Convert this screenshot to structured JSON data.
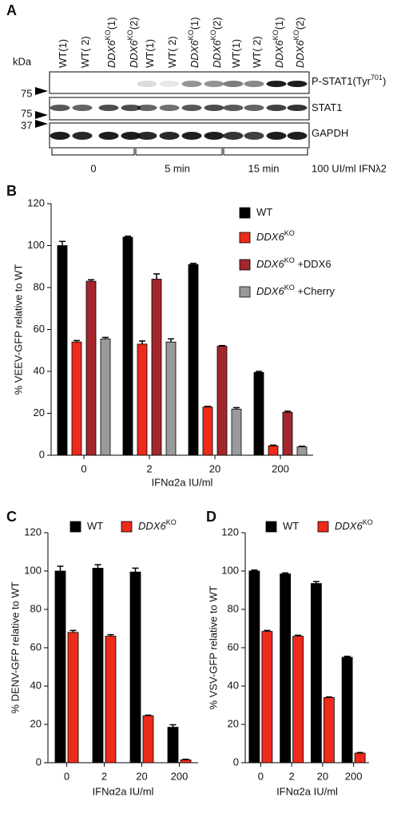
{
  "blot": {
    "panel": "A",
    "unit": "kDa",
    "lanes": [
      [
        {
          "t": "WT(1)"
        }
      ],
      [
        {
          "t": "WT( 2)"
        }
      ],
      [
        {
          "t": "DDX6",
          "i": true
        },
        {
          "t": "KO",
          "sup": true
        },
        {
          "t": "(1)"
        }
      ],
      [
        {
          "t": "DDX6",
          "i": true
        },
        {
          "t": "KO",
          "sup": true
        },
        {
          "t": "(2)"
        }
      ],
      [
        {
          "t": "WT(1)"
        }
      ],
      [
        {
          "t": "WT( 2)"
        }
      ],
      [
        {
          "t": "DDX6",
          "i": true
        },
        {
          "t": "KO",
          "sup": true
        },
        {
          "t": "(1)"
        }
      ],
      [
        {
          "t": "DDX6",
          "i": true
        },
        {
          "t": "KO",
          "sup": true
        },
        {
          "t": "(2)"
        }
      ],
      [
        {
          "t": "WT(1)"
        }
      ],
      [
        {
          "t": "WT( 2)"
        }
      ],
      [
        {
          "t": "DDX6",
          "i": true
        },
        {
          "t": "KO",
          "sup": true
        },
        {
          "t": "(1)"
        }
      ],
      [
        {
          "t": "DDX6",
          "i": true
        },
        {
          "t": "KO",
          "sup": true
        },
        {
          "t": "(2)"
        }
      ]
    ],
    "markers": [
      "75",
      "75",
      "37"
    ],
    "bands": [
      [
        {
          "t": "P-STAT1(Tyr"
        },
        {
          "t": "701",
          "sup": true
        },
        {
          "t": ")"
        }
      ],
      [
        {
          "t": "STAT1"
        }
      ],
      [
        {
          "t": "GAPDH"
        }
      ]
    ],
    "timepoints": [
      "0",
      "5 min",
      "15 min"
    ],
    "treatment": "100 UI/ml IFNλ2"
  },
  "chart_data": [
    {
      "type": "bar",
      "panel": "B",
      "ylabel": "% VEEV-GFP relative to WT",
      "xlabel": "IFNα2a IU/ml",
      "categories": [
        "0",
        "2",
        "20",
        "200"
      ],
      "ylim": [
        0,
        120
      ],
      "yticks": [
        0,
        20,
        40,
        60,
        80,
        100,
        120
      ],
      "legend": "upper right",
      "series": [
        {
          "name": [
            {
              "t": "WT"
            }
          ],
          "color": "#000000",
          "values": [
            100,
            104,
            91,
            39.5
          ],
          "errors": [
            2,
            0.5,
            0.5,
            0.5
          ]
        },
        {
          "name": [
            {
              "t": "DDX6",
              "i": true
            },
            {
              "t": "KO",
              "sup": true
            }
          ],
          "color": "#ee2a1a",
          "values": [
            54,
            53,
            23,
            4.5
          ],
          "errors": [
            0.7,
            1.5,
            0.3,
            0.3
          ]
        },
        {
          "name": [
            {
              "t": "DDX6",
              "i": true
            },
            {
              "t": "KO",
              "sup": true
            },
            {
              "t": " +DDX6"
            }
          ],
          "color": "#a3262c",
          "values": [
            83,
            84,
            52,
            20.5
          ],
          "errors": [
            0.7,
            2.5,
            0.3,
            0.5
          ]
        },
        {
          "name": [
            {
              "t": "DDX6",
              "i": true
            },
            {
              "t": "KO",
              "sup": true
            },
            {
              "t": " +Cherry"
            }
          ],
          "color": "#9a9a9a",
          "values": [
            55.5,
            54,
            22,
            4
          ],
          "errors": [
            0.7,
            1.5,
            0.7,
            0.3
          ]
        }
      ]
    },
    {
      "type": "bar",
      "panel": "C",
      "ylabel": "% DENV-GFP relative to WT",
      "xlabel": "IFNα2a IU/ml",
      "categories": [
        "0",
        "2",
        "20",
        "200"
      ],
      "ylim": [
        0,
        120
      ],
      "yticks": [
        0,
        20,
        40,
        60,
        80,
        100,
        120
      ],
      "legend": "top",
      "series": [
        {
          "name": [
            {
              "t": "WT"
            }
          ],
          "color": "#000000",
          "values": [
            100,
            101.5,
            99.5,
            18.5
          ],
          "errors": [
            2.5,
            1.8,
            2,
            1.3
          ]
        },
        {
          "name": [
            {
              "t": "DDX6",
              "i": true
            },
            {
              "t": "KO",
              "sup": true
            }
          ],
          "color": "#ee2a1a",
          "values": [
            68,
            66,
            24.5,
            1.5
          ],
          "errors": [
            1,
            0.8,
            0.3,
            0.3
          ]
        }
      ]
    },
    {
      "type": "bar",
      "panel": "D",
      "ylabel": "% VSV-GFP relative to WT",
      "xlabel": "IFNα2a IU/ml",
      "categories": [
        "0",
        "2",
        "20",
        "200"
      ],
      "ylim": [
        0,
        120
      ],
      "yticks": [
        0,
        20,
        40,
        60,
        80,
        100,
        120
      ],
      "legend": "top",
      "series": [
        {
          "name": [
            {
              "t": "WT"
            }
          ],
          "color": "#000000",
          "values": [
            100,
            98.5,
            93.5,
            55
          ],
          "errors": [
            0.5,
            0.5,
            1,
            0.5
          ]
        },
        {
          "name": [
            {
              "t": "DDX6",
              "i": true
            },
            {
              "t": "KO",
              "sup": true
            }
          ],
          "color": "#ee2a1a",
          "values": [
            68.5,
            66,
            34,
            5
          ],
          "errors": [
            0.5,
            0.5,
            0.3,
            0.3
          ]
        }
      ]
    }
  ]
}
